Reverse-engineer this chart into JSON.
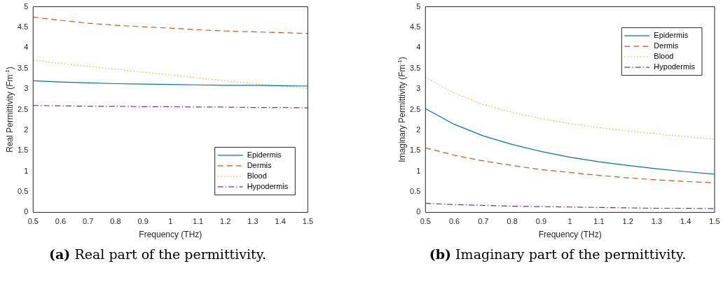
{
  "chart_data": [
    {
      "type": "line",
      "xlabel": "Frequency (THz)",
      "ylabel": "Real Permittivity (Fm$^{-1}$)",
      "x": [
        0.5,
        0.6,
        0.7,
        0.8,
        0.9,
        1.0,
        1.1,
        1.2,
        1.3,
        1.4,
        1.5
      ],
      "xlim": [
        0.5,
        1.5
      ],
      "xticks": [
        0.5,
        0.6,
        0.7,
        0.8,
        0.9,
        1,
        1.1,
        1.2,
        1.3,
        1.4,
        1.5
      ],
      "ylim": [
        0,
        5
      ],
      "yticks": [
        0,
        0.5,
        1,
        1.5,
        2,
        2.5,
        3,
        3.5,
        4,
        4.5,
        5
      ],
      "grid": false,
      "legend": "bottom right",
      "marker": "none",
      "annotations": [
        "(a) Real part of the permittivity."
      ],
      "series": [
        {
          "name": "Epidermis",
          "color": "#0072bd",
          "line_style": "solid",
          "values": [
            3.2,
            3.17,
            3.15,
            3.13,
            3.12,
            3.11,
            3.1,
            3.09,
            3.09,
            3.08,
            3.07
          ]
        },
        {
          "name": "Dermis",
          "color": "#d95319",
          "line_style": "dashed",
          "values": [
            4.75,
            4.67,
            4.6,
            4.55,
            4.51,
            4.48,
            4.44,
            4.41,
            4.39,
            4.37,
            4.35
          ]
        },
        {
          "name": "Blood",
          "color": "#edb120",
          "line_style": "dotted",
          "values": [
            3.7,
            3.62,
            3.55,
            3.48,
            3.41,
            3.34,
            3.27,
            3.2,
            3.13,
            3.07,
            3.01
          ]
        },
        {
          "name": "Hypodermis",
          "color": "#7e2f8e",
          "line_style": "dashdot",
          "values": [
            2.6,
            2.59,
            2.58,
            2.58,
            2.57,
            2.57,
            2.56,
            2.56,
            2.55,
            2.55,
            2.54
          ]
        }
      ]
    },
    {
      "type": "line",
      "xlabel": "Frequency (THz)",
      "ylabel": "Imaginary Permittivity (Fm$^{-1}$)",
      "x": [
        0.5,
        0.6,
        0.7,
        0.8,
        0.9,
        1.0,
        1.1,
        1.2,
        1.3,
        1.4,
        1.5
      ],
      "xlim": [
        0.5,
        1.5
      ],
      "xticks": [
        0.5,
        0.6,
        0.7,
        0.8,
        0.9,
        1,
        1.1,
        1.2,
        1.3,
        1.4,
        1.5
      ],
      "ylim": [
        0,
        5
      ],
      "yticks": [
        0,
        0.5,
        1,
        1.5,
        2,
        2.5,
        3,
        3.5,
        4,
        4.5,
        5
      ],
      "grid": false,
      "legend": "top right",
      "marker": "none",
      "annotations": [
        "(b) Imaginary part of the permittivity."
      ],
      "series": [
        {
          "name": "Epidermis",
          "color": "#0072bd",
          "line_style": "solid",
          "values": [
            2.52,
            2.14,
            1.86,
            1.65,
            1.48,
            1.34,
            1.23,
            1.14,
            1.06,
            0.99,
            0.93
          ]
        },
        {
          "name": "Dermis",
          "color": "#d95319",
          "line_style": "dashed",
          "values": [
            1.57,
            1.39,
            1.25,
            1.14,
            1.04,
            0.97,
            0.9,
            0.84,
            0.79,
            0.75,
            0.72
          ]
        },
        {
          "name": "Blood",
          "color": "#edb120",
          "line_style": "dotted",
          "values": [
            3.28,
            2.9,
            2.62,
            2.43,
            2.28,
            2.16,
            2.06,
            1.98,
            1.91,
            1.84,
            1.78
          ]
        },
        {
          "name": "Hypodermis",
          "color": "#7e2f8e",
          "line_style": "dashdot",
          "values": [
            0.22,
            0.19,
            0.17,
            0.15,
            0.14,
            0.13,
            0.12,
            0.11,
            0.1,
            0.1,
            0.09
          ]
        }
      ]
    }
  ]
}
